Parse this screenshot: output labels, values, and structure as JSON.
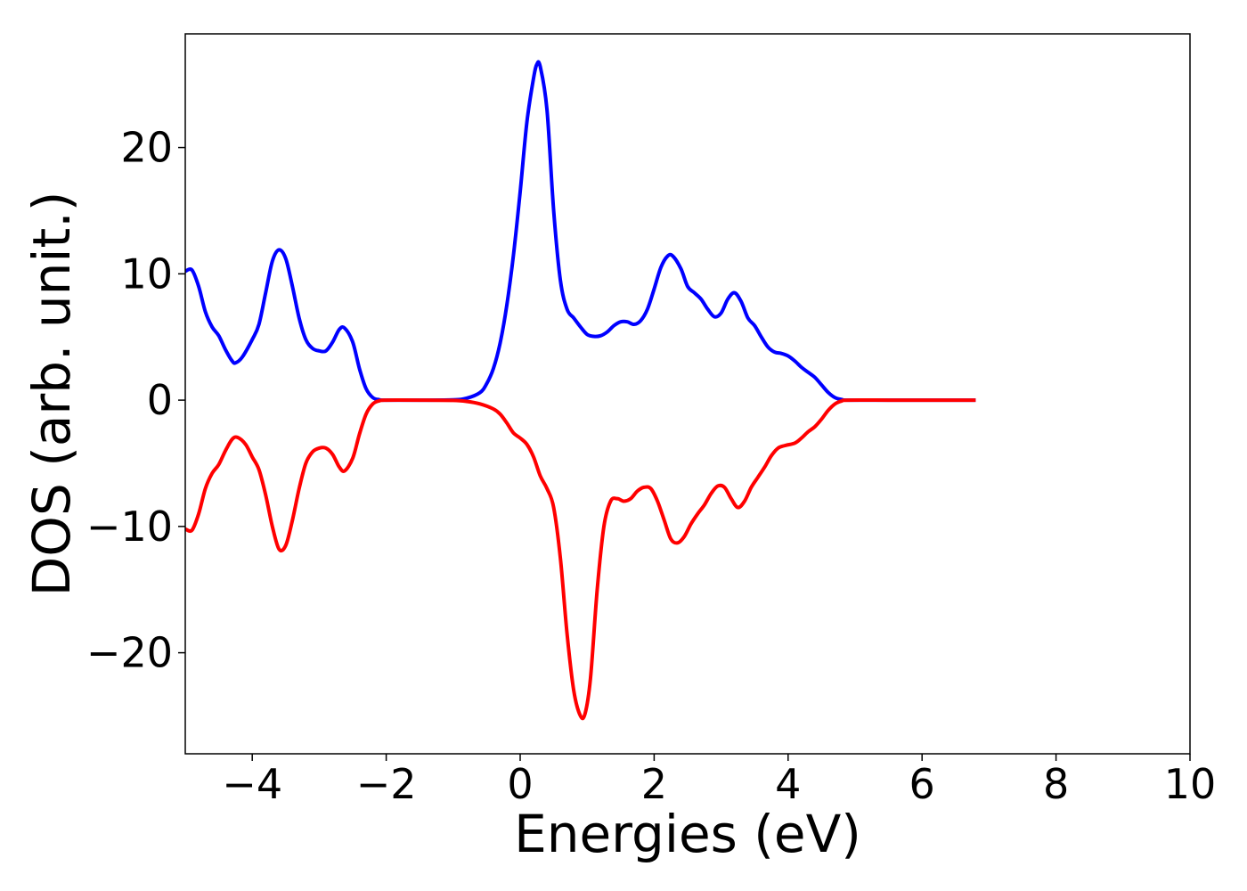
{
  "chart_data": {
    "type": "line",
    "title": "",
    "xlabel": "Energies (eV)",
    "ylabel": "DOS (arb. unit.)",
    "xlim": [
      -5,
      10
    ],
    "ylim": [
      -28,
      29
    ],
    "xticks": [
      -4,
      -2,
      0,
      2,
      4,
      6,
      8,
      10
    ],
    "xtick_labels": [
      "−4",
      "−2",
      "0",
      "2",
      "4",
      "6",
      "8",
      "10"
    ],
    "yticks": [
      -20,
      -10,
      0,
      10,
      20
    ],
    "ytick_labels": [
      "−20",
      "−10",
      "0",
      "10",
      "20"
    ],
    "grid": false,
    "legend": "none",
    "series": [
      {
        "color": "#0000ff",
        "points": [
          [
            -5.0,
            10.2
          ],
          [
            -4.9,
            10.3
          ],
          [
            -4.8,
            9.0
          ],
          [
            -4.7,
            7.0
          ],
          [
            -4.6,
            5.8
          ],
          [
            -4.5,
            5.1
          ],
          [
            -4.4,
            4.0
          ],
          [
            -4.3,
            3.1
          ],
          [
            -4.25,
            2.95
          ],
          [
            -4.15,
            3.4
          ],
          [
            -4.0,
            4.8
          ],
          [
            -3.9,
            6.0
          ],
          [
            -3.8,
            8.5
          ],
          [
            -3.7,
            11.0
          ],
          [
            -3.6,
            11.9
          ],
          [
            -3.5,
            11.2
          ],
          [
            -3.4,
            9.0
          ],
          [
            -3.3,
            6.5
          ],
          [
            -3.2,
            4.8
          ],
          [
            -3.1,
            4.1
          ],
          [
            -3.0,
            3.9
          ],
          [
            -2.9,
            3.9
          ],
          [
            -2.8,
            4.6
          ],
          [
            -2.7,
            5.6
          ],
          [
            -2.62,
            5.7
          ],
          [
            -2.5,
            4.6
          ],
          [
            -2.4,
            2.5
          ],
          [
            -2.3,
            0.9
          ],
          [
            -2.2,
            0.2
          ],
          [
            -2.1,
            0.03
          ],
          [
            -2.0,
            0.0
          ],
          [
            -1.5,
            0.0
          ],
          [
            -1.0,
            0.02
          ],
          [
            -0.8,
            0.15
          ],
          [
            -0.6,
            0.6
          ],
          [
            -0.5,
            1.3
          ],
          [
            -0.4,
            2.5
          ],
          [
            -0.3,
            4.5
          ],
          [
            -0.2,
            7.5
          ],
          [
            -0.1,
            11.5
          ],
          [
            0.0,
            16.5
          ],
          [
            0.1,
            22.0
          ],
          [
            0.2,
            25.5
          ],
          [
            0.25,
            26.6
          ],
          [
            0.3,
            26.4
          ],
          [
            0.4,
            23.0
          ],
          [
            0.5,
            15.0
          ],
          [
            0.6,
            9.5
          ],
          [
            0.7,
            7.2
          ],
          [
            0.8,
            6.5
          ],
          [
            0.9,
            5.8
          ],
          [
            1.0,
            5.2
          ],
          [
            1.1,
            5.05
          ],
          [
            1.2,
            5.1
          ],
          [
            1.3,
            5.4
          ],
          [
            1.4,
            5.9
          ],
          [
            1.5,
            6.2
          ],
          [
            1.6,
            6.2
          ],
          [
            1.7,
            6.0
          ],
          [
            1.8,
            6.3
          ],
          [
            1.9,
            7.2
          ],
          [
            2.0,
            8.8
          ],
          [
            2.1,
            10.5
          ],
          [
            2.2,
            11.4
          ],
          [
            2.28,
            11.4
          ],
          [
            2.4,
            10.4
          ],
          [
            2.5,
            9.0
          ],
          [
            2.6,
            8.5
          ],
          [
            2.7,
            8.0
          ],
          [
            2.8,
            7.2
          ],
          [
            2.9,
            6.6
          ],
          [
            3.0,
            6.9
          ],
          [
            3.1,
            8.0
          ],
          [
            3.2,
            8.5
          ],
          [
            3.3,
            7.8
          ],
          [
            3.4,
            6.5
          ],
          [
            3.5,
            5.9
          ],
          [
            3.6,
            5.0
          ],
          [
            3.7,
            4.2
          ],
          [
            3.8,
            3.8
          ],
          [
            3.9,
            3.7
          ],
          [
            4.0,
            3.5
          ],
          [
            4.1,
            3.1
          ],
          [
            4.2,
            2.6
          ],
          [
            4.3,
            2.2
          ],
          [
            4.4,
            1.8
          ],
          [
            4.5,
            1.2
          ],
          [
            4.6,
            0.6
          ],
          [
            4.7,
            0.2
          ],
          [
            4.8,
            0.05
          ],
          [
            4.9,
            0.0
          ],
          [
            5.5,
            0.0
          ],
          [
            6.0,
            0.0
          ],
          [
            6.8,
            0.0
          ]
        ]
      },
      {
        "color": "#ff0000",
        "points": [
          [
            -5.0,
            -10.2
          ],
          [
            -4.9,
            -10.3
          ],
          [
            -4.8,
            -9.0
          ],
          [
            -4.7,
            -7.0
          ],
          [
            -4.6,
            -5.8
          ],
          [
            -4.5,
            -5.1
          ],
          [
            -4.4,
            -4.0
          ],
          [
            -4.3,
            -3.1
          ],
          [
            -4.22,
            -2.95
          ],
          [
            -4.1,
            -3.5
          ],
          [
            -4.0,
            -4.5
          ],
          [
            -3.9,
            -5.5
          ],
          [
            -3.8,
            -7.5
          ],
          [
            -3.7,
            -10.0
          ],
          [
            -3.6,
            -11.8
          ],
          [
            -3.5,
            -11.5
          ],
          [
            -3.4,
            -9.5
          ],
          [
            -3.3,
            -7.0
          ],
          [
            -3.2,
            -5.0
          ],
          [
            -3.1,
            -4.1
          ],
          [
            -3.0,
            -3.8
          ],
          [
            -2.9,
            -3.8
          ],
          [
            -2.8,
            -4.3
          ],
          [
            -2.7,
            -5.3
          ],
          [
            -2.62,
            -5.6
          ],
          [
            -2.5,
            -4.6
          ],
          [
            -2.4,
            -2.7
          ],
          [
            -2.3,
            -1.1
          ],
          [
            -2.2,
            -0.3
          ],
          [
            -2.1,
            -0.05
          ],
          [
            -2.0,
            0.0
          ],
          [
            -1.5,
            0.0
          ],
          [
            -1.0,
            -0.02
          ],
          [
            -0.8,
            -0.1
          ],
          [
            -0.6,
            -0.3
          ],
          [
            -0.4,
            -0.7
          ],
          [
            -0.3,
            -1.1
          ],
          [
            -0.2,
            -1.8
          ],
          [
            -0.1,
            -2.6
          ],
          [
            0.0,
            -3.0
          ],
          [
            0.1,
            -3.5
          ],
          [
            0.2,
            -4.5
          ],
          [
            0.3,
            -6.0
          ],
          [
            0.4,
            -7.0
          ],
          [
            0.5,
            -8.5
          ],
          [
            0.6,
            -12.5
          ],
          [
            0.7,
            -18.5
          ],
          [
            0.8,
            -23.0
          ],
          [
            0.9,
            -25.0
          ],
          [
            0.97,
            -24.8
          ],
          [
            1.05,
            -22.0
          ],
          [
            1.15,
            -15.0
          ],
          [
            1.25,
            -10.0
          ],
          [
            1.35,
            -8.0
          ],
          [
            1.45,
            -7.8
          ],
          [
            1.55,
            -8.0
          ],
          [
            1.65,
            -7.8
          ],
          [
            1.75,
            -7.2
          ],
          [
            1.85,
            -6.9
          ],
          [
            1.95,
            -7.0
          ],
          [
            2.05,
            -8.0
          ],
          [
            2.15,
            -9.5
          ],
          [
            2.25,
            -11.0
          ],
          [
            2.35,
            -11.3
          ],
          [
            2.45,
            -10.8
          ],
          [
            2.55,
            -9.8
          ],
          [
            2.65,
            -9.0
          ],
          [
            2.75,
            -8.3
          ],
          [
            2.85,
            -7.4
          ],
          [
            2.95,
            -6.8
          ],
          [
            3.05,
            -6.9
          ],
          [
            3.15,
            -7.8
          ],
          [
            3.25,
            -8.5
          ],
          [
            3.35,
            -8.0
          ],
          [
            3.45,
            -6.9
          ],
          [
            3.55,
            -6.1
          ],
          [
            3.65,
            -5.3
          ],
          [
            3.75,
            -4.4
          ],
          [
            3.85,
            -3.8
          ],
          [
            3.95,
            -3.6
          ],
          [
            4.1,
            -3.4
          ],
          [
            4.2,
            -3.0
          ],
          [
            4.3,
            -2.5
          ],
          [
            4.4,
            -2.1
          ],
          [
            4.5,
            -1.5
          ],
          [
            4.6,
            -0.8
          ],
          [
            4.7,
            -0.3
          ],
          [
            4.8,
            -0.07
          ],
          [
            4.9,
            0.0
          ],
          [
            5.5,
            0.0
          ],
          [
            6.0,
            0.0
          ],
          [
            6.8,
            0.0
          ]
        ]
      }
    ]
  }
}
